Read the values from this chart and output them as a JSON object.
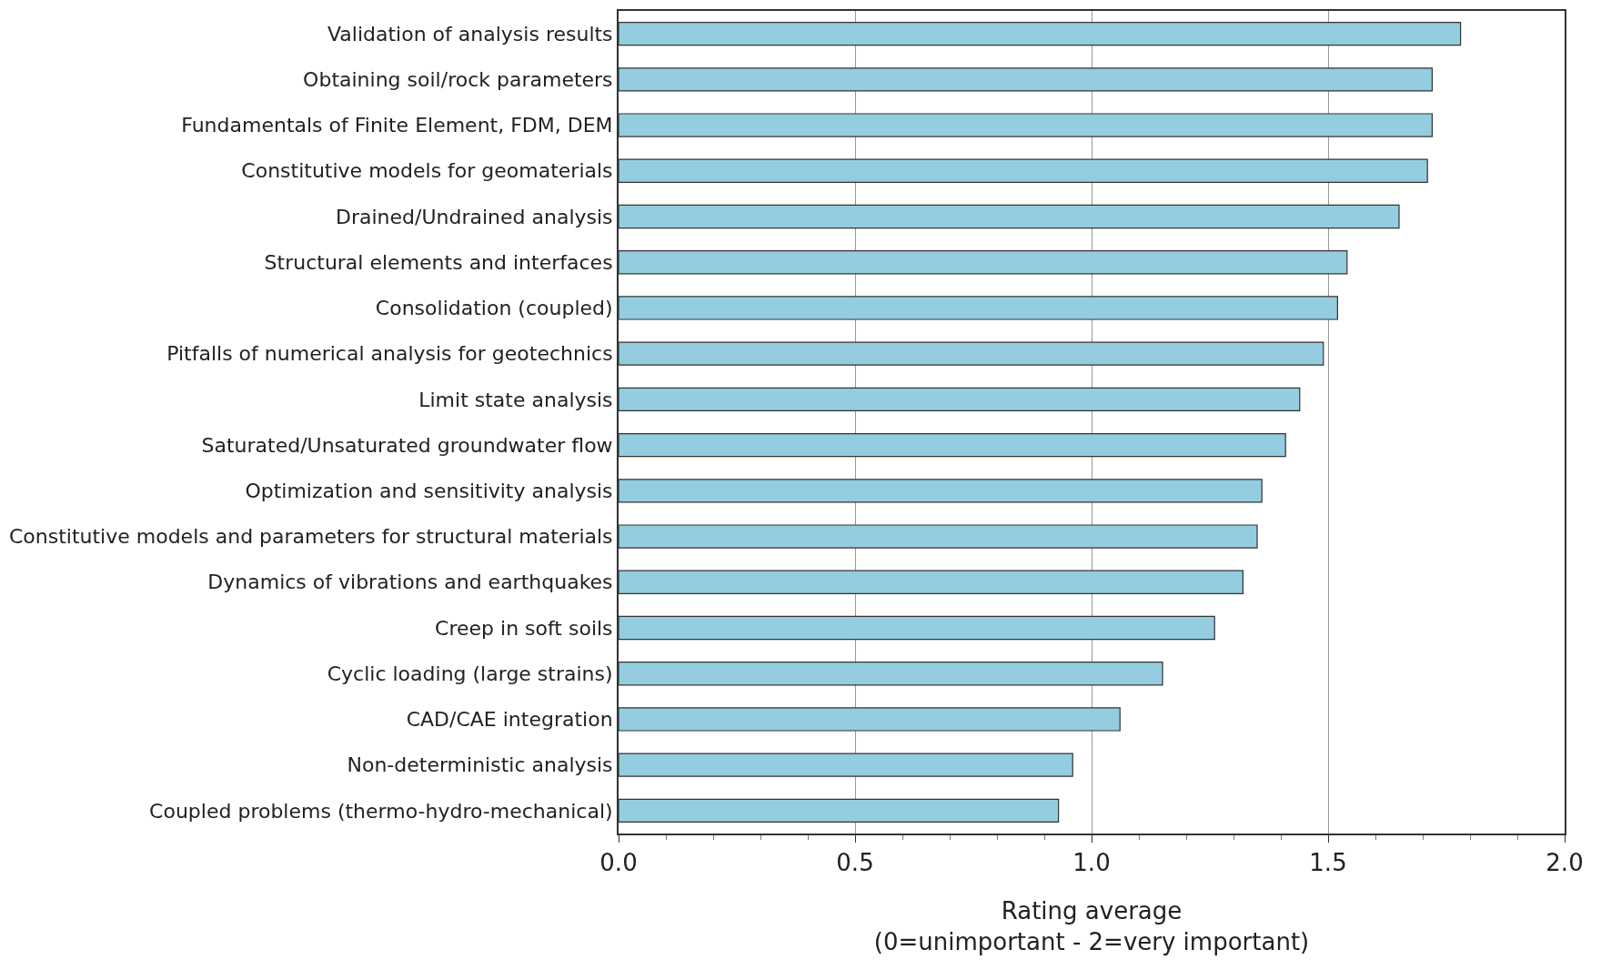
{
  "chart_data": {
    "type": "bar",
    "orientation": "horizontal",
    "xlabel": "Rating average\n(0=unimportant - 2=very important)",
    "categories": [
      "Validation of analysis results",
      "Obtaining soil/rock parameters",
      "Fundamentals of Finite Element, FDM, DEM",
      "Constitutive models for geomaterials",
      "Drained/Undrained analysis",
      "Structural elements and interfaces",
      "Consolidation (coupled)",
      "Pitfalls of numerical analysis for geotechnics",
      "Limit state analysis",
      "Saturated/Unsaturated groundwater flow",
      "Optimization and sensitivity analysis",
      "Constitutive models and parameters for structural materials",
      "Dynamics of vibrations and earthquakes",
      "Creep in soft soils",
      "Cyclic loading (large strains)",
      "CAD/CAE integration",
      "Non-deterministic analysis",
      "Coupled problems (thermo-hydro-mechanical)"
    ],
    "values": [
      1.78,
      1.72,
      1.72,
      1.71,
      1.65,
      1.54,
      1.52,
      1.49,
      1.44,
      1.41,
      1.36,
      1.35,
      1.32,
      1.26,
      1.15,
      1.06,
      0.96,
      0.93
    ],
    "color": "#94cddf",
    "xlim": [
      0,
      2
    ],
    "xticks": [
      {
        "value": 0,
        "label": "0.0"
      },
      {
        "value": 0.5,
        "label": "0.5"
      },
      {
        "value": 1,
        "label": "1.0"
      },
      {
        "value": 1.5,
        "label": "1.5"
      },
      {
        "value": 2,
        "label": "2.0"
      }
    ],
    "grid": "x"
  }
}
